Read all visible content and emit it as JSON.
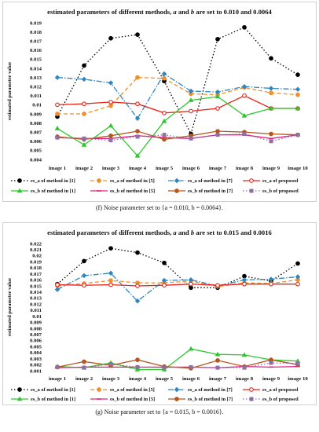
{
  "figures": [
    {
      "title_prefix": "estimated parameters of different methods, ",
      "title_a": "a",
      "title_mid": " and ",
      "title_b": "b",
      "title_suffix": " are set to 0.010 and 0.0064",
      "caption_label": "(f)",
      "caption_text": " Noise parameter set to {a = 0.010, b = 0.0064}."
    },
    {
      "title_prefix": "estimated parameters of different methods, ",
      "title_a": "a",
      "title_mid": " and ",
      "title_b": "b",
      "title_suffix": " are set to 0.015 and 0.0016",
      "caption_label": "(g)",
      "caption_text": " Noise parameter set to {a = 0.015, b = 0.0016}."
    }
  ],
  "chart_data": [
    {
      "type": "line",
      "title": "estimated parameters of different methods, a and b are set to 0.010 and 0.0064",
      "ylabel": "estimated parameter value",
      "ylim": [
        0.004,
        0.019
      ],
      "ytick_step": 0.001,
      "ytick_labels": [
        "0.004",
        "0.005",
        "0.006",
        "0.007",
        "0.008",
        "0.009",
        "0.01",
        "0.011",
        "0.012",
        "0.013",
        "0.014",
        "0.015",
        "0.016",
        "0.017",
        "0.018",
        "0.019"
      ],
      "categories": [
        "image 1",
        "image 2",
        "image 3",
        "image 4",
        "image 5",
        "image 6",
        "image 7",
        "image 8",
        "image 9",
        "image 10"
      ],
      "legend_position": "bottom",
      "series": [
        {
          "name": "es_a of method in [1]",
          "color": "#000000",
          "dash": "1.5,2.5",
          "marker": "circle",
          "fill": "#000000",
          "values": [
            0.0087,
            0.0143,
            0.0173,
            0.0177,
            0.0126,
            0.0068,
            0.0172,
            0.0185,
            0.0151,
            0.0133
          ]
        },
        {
          "name": "es_a of method in [5]",
          "color": "#f28e2b",
          "dash": "5,3",
          "marker": "circle",
          "fill": "#f28e2b",
          "values": [
            0.009,
            0.009,
            0.0099,
            0.013,
            0.0129,
            0.0112,
            0.0111,
            0.0119,
            0.0113,
            0.0111
          ]
        },
        {
          "name": "es_a of method in [7]",
          "color": "#2e86c1",
          "dash": "7,2,1.5,2",
          "marker": "diamond",
          "fill": "#2e86c1",
          "values": [
            0.013,
            0.0128,
            0.0124,
            0.0085,
            0.0134,
            0.0115,
            0.0114,
            0.012,
            0.0118,
            0.0117
          ]
        },
        {
          "name": "es_a of proposed",
          "color": "#e8231a",
          "dash": "",
          "marker": "circle",
          "fill": "#ffffff",
          "values": [
            0.01,
            0.0101,
            0.0103,
            0.0101,
            0.0091,
            0.0093,
            0.0096,
            0.011,
            0.0096,
            0.0096
          ]
        },
        {
          "name": "es_b of method in [1]",
          "color": "#2dc72d",
          "dash": "",
          "marker": "triangle",
          "fill": "#2dc72d",
          "values": [
            0.0074,
            0.0056,
            0.0077,
            0.0044,
            0.0082,
            0.0105,
            0.0109,
            0.0088,
            0.0096,
            0.0096
          ]
        },
        {
          "name": "es_b of method in [5]",
          "color": "#e61e8c",
          "dash": "",
          "marker": "dash",
          "fill": "#e61e8c",
          "values": [
            0.0064,
            0.0063,
            0.0063,
            0.0066,
            0.0064,
            0.0063,
            0.0067,
            0.0067,
            0.0063,
            0.0067
          ]
        },
        {
          "name": "es_b of method in [7]",
          "color": "#b5561c",
          "dash": "",
          "marker": "circle",
          "fill": "#b5561c",
          "values": [
            0.0065,
            0.0062,
            0.0066,
            0.0071,
            0.0062,
            0.0066,
            0.0071,
            0.007,
            0.0068,
            0.0067
          ]
        },
        {
          "name": "es_b of proposed",
          "color": "#8e6fa6",
          "dash": "1.5,2.5",
          "marker": "square",
          "fill": "#8e6fa6",
          "values": [
            0.0064,
            0.0063,
            0.0061,
            0.0065,
            0.0067,
            0.0063,
            0.0067,
            0.0068,
            0.006,
            0.0067
          ]
        }
      ]
    },
    {
      "type": "line",
      "title": "estimated parameters of different methods, a and b are set to 0.015 and 0.0016",
      "ylabel": "estimated parameter value",
      "ylim": [
        0.001,
        0.022
      ],
      "ytick_step": 0.001,
      "ytick_labels": [
        "0.001",
        "0.002",
        "0.003",
        "0.004",
        "0.005",
        "0.006",
        "0.007",
        "0.008",
        "0.009",
        "0.01",
        "0.011",
        "0.012",
        "0.013",
        "0.014",
        "0.015",
        "0.016",
        "0.017",
        "0.018",
        "0.019",
        "0.02",
        "0.021",
        "0.022"
      ],
      "categories": [
        "image 1",
        "image 2",
        "image 3",
        "image 4",
        "image 5",
        "image 6",
        "image 7",
        "image 8",
        "image 9",
        "image 10"
      ],
      "legend_position": "bottom",
      "series": [
        {
          "name": "es_a of method in [1]",
          "color": "#000000",
          "dash": "1.5,2.5",
          "marker": "circle",
          "fill": "#000000",
          "values": [
            0.0153,
            0.0191,
            0.0212,
            0.0205,
            0.0188,
            0.0147,
            0.0147,
            0.0166,
            0.0158,
            0.0187
          ]
        },
        {
          "name": "es_a of method in [5]",
          "color": "#f28e2b",
          "dash": "5,3",
          "marker": "circle",
          "fill": "#f28e2b",
          "values": [
            0.015,
            0.0154,
            0.0159,
            0.0155,
            0.0155,
            0.0158,
            0.0149,
            0.0155,
            0.0154,
            0.016
          ]
        },
        {
          "name": "es_a of method in [7]",
          "color": "#2e86c1",
          "dash": "7,2,1.5,2",
          "marker": "diamond",
          "fill": "#2e86c1",
          "values": [
            0.0144,
            0.0167,
            0.0171,
            0.0125,
            0.0159,
            0.016,
            0.015,
            0.016,
            0.0161,
            0.0165
          ]
        },
        {
          "name": "es_a of proposed",
          "color": "#e8231a",
          "dash": "",
          "marker": "circle",
          "fill": "#ffffff",
          "values": [
            0.0152,
            0.0151,
            0.0152,
            0.015,
            0.0151,
            0.0153,
            0.0151,
            0.0153,
            0.0153,
            0.0153
          ]
        },
        {
          "name": "es_b of method in [1]",
          "color": "#2dc72d",
          "dash": "",
          "marker": "triangle",
          "fill": "#2dc72d",
          "values": [
            0.0017,
            0.0015,
            0.0023,
            0.0012,
            0.0012,
            0.0046,
            0.0037,
            0.0036,
            0.0028,
            0.0026
          ]
        },
        {
          "name": "es_b of method in [5]",
          "color": "#e61e8c",
          "dash": "",
          "marker": "dash",
          "fill": "#e61e8c",
          "values": [
            0.0015,
            0.0016,
            0.0016,
            0.0016,
            0.0016,
            0.0016,
            0.0015,
            0.0017,
            0.0016,
            0.0017
          ]
        },
        {
          "name": "es_b of method in [7]",
          "color": "#b5561c",
          "dash": "",
          "marker": "circle",
          "fill": "#b5561c",
          "values": [
            0.0016,
            0.0025,
            0.0019,
            0.0028,
            0.0017,
            0.0014,
            0.0027,
            0.0017,
            0.0028,
            0.002
          ]
        },
        {
          "name": "es_b of proposed",
          "color": "#8e6fa6",
          "dash": "1.5,2.5",
          "marker": "square",
          "fill": "#8e6fa6",
          "values": [
            0.0016,
            0.0015,
            0.0021,
            0.0016,
            0.0015,
            0.0016,
            0.0015,
            0.0015,
            0.0023,
            0.0022
          ]
        }
      ]
    }
  ]
}
